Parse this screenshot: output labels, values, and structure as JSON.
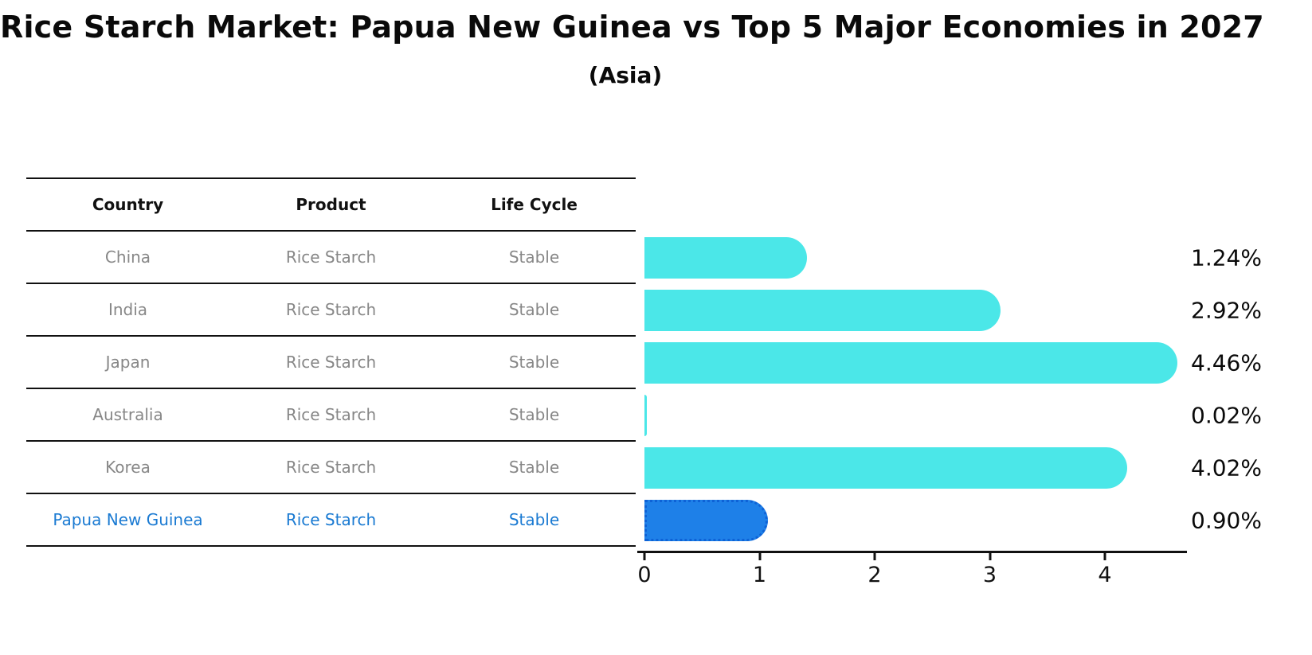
{
  "title": "Rice Starch Market: Papua New Guinea vs Top 5 Major Economies in 2027",
  "subtitle": "(Asia)",
  "table": {
    "headers": [
      "Country",
      "Product",
      "Life Cycle"
    ],
    "rows": [
      {
        "country": "China",
        "product": "Rice Starch",
        "life_cycle": "Stable",
        "highlight": false
      },
      {
        "country": "India",
        "product": "Rice Starch",
        "life_cycle": "Stable",
        "highlight": false
      },
      {
        "country": "Japan",
        "product": "Rice Starch",
        "life_cycle": "Stable",
        "highlight": false
      },
      {
        "country": "Australia",
        "product": "Rice Starch",
        "life_cycle": "Stable",
        "highlight": false
      },
      {
        "country": "Korea",
        "product": "Rice Starch",
        "life_cycle": "Stable",
        "highlight": false
      },
      {
        "country": "Papua New Guinea",
        "product": "Rice Starch",
        "life_cycle": "Stable",
        "highlight": true
      }
    ]
  },
  "chart_data": {
    "type": "bar",
    "orientation": "horizontal",
    "title": "Rice Starch Market: Papua New Guinea vs Top 5 Major Economies in 2027 (Asia)",
    "categories": [
      "China",
      "India",
      "Japan",
      "Australia",
      "Korea",
      "Papua New Guinea"
    ],
    "values": [
      1.24,
      2.92,
      4.46,
      0.02,
      4.02,
      0.9
    ],
    "value_labels": [
      "1.24%",
      "2.92%",
      "4.46%",
      "0.02%",
      "4.02%",
      "0.90%"
    ],
    "x_ticks": [
      "0",
      "1",
      "2",
      "3",
      "4"
    ],
    "xlim": [
      0,
      4.7
    ],
    "grid": false,
    "legend": "none",
    "highlight_index": 5,
    "bar_color": "#4BE7E8",
    "highlight_bar_color": "#1E80E8",
    "highlight_border_color": "#0E62D6",
    "highlight_text_color": "#1A7AD2"
  },
  "colors": {
    "table_text": "#878787",
    "header_text": "#111111",
    "line": "#111111",
    "label_text": "#0a0a0a",
    "background": "#ffffff"
  }
}
